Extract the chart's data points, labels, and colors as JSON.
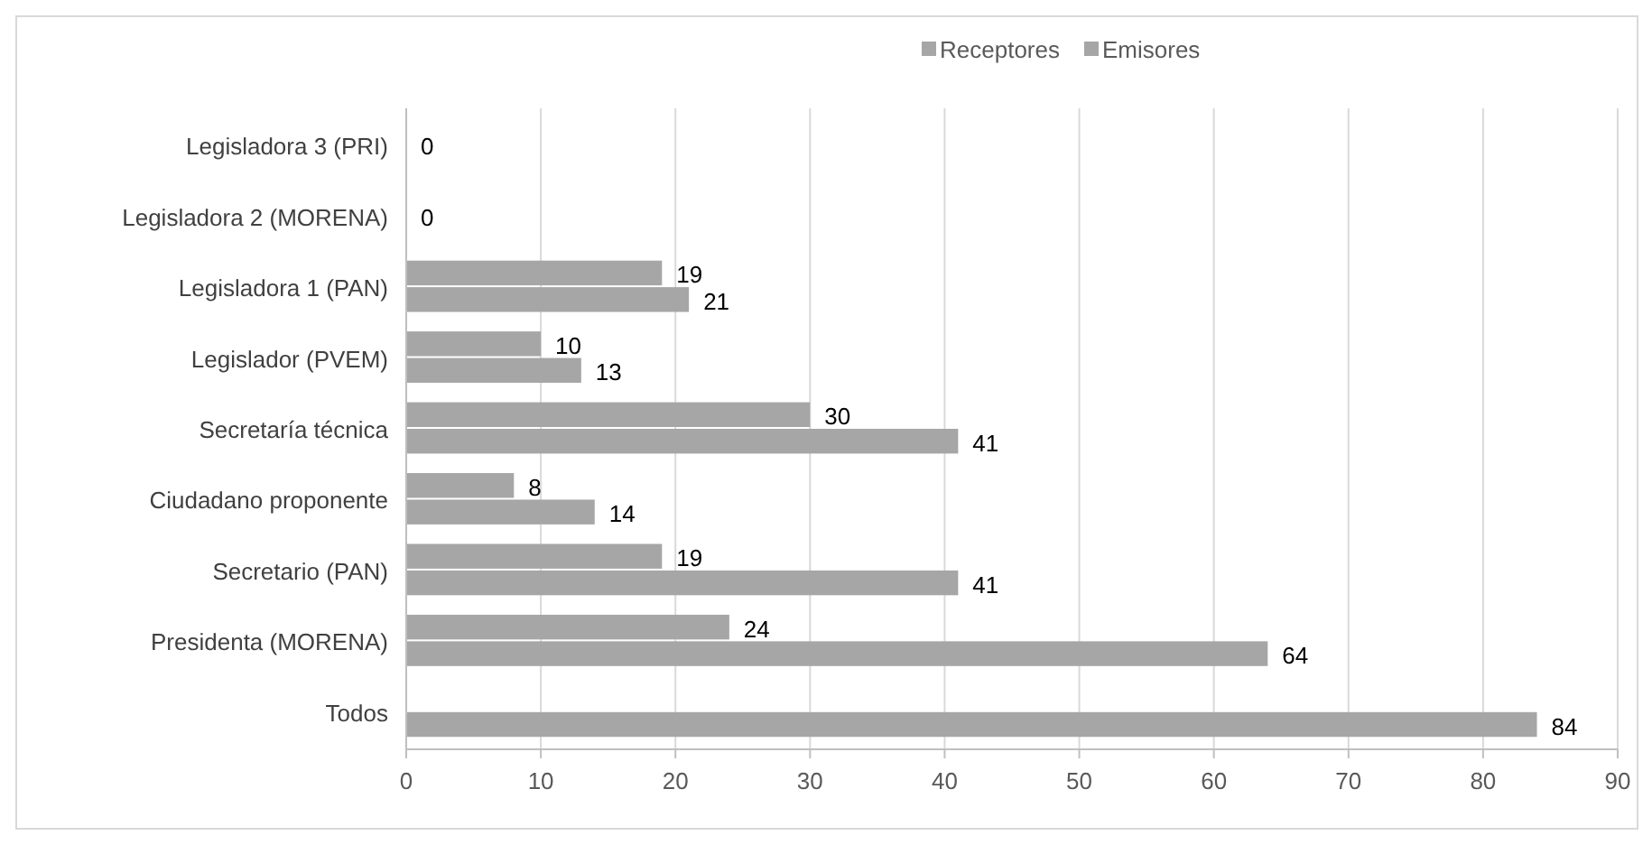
{
  "chart_data": {
    "type": "bar",
    "orientation": "horizontal",
    "categories": [
      "Legisladora 3 (PRI)",
      "Legisladora 2 (MORENA)",
      "Legisladora 1 (PAN)",
      "Legislador (PVEM)",
      "Secretaría técnica",
      "Ciudadano proponente",
      "Secretario (PAN)",
      "Presidenta (MORENA)",
      "Todos"
    ],
    "series": [
      {
        "name": "Receptores",
        "color": "#a6a6a6",
        "values": [
          0,
          0,
          19,
          10,
          30,
          8,
          19,
          24,
          null
        ],
        "value_labels": [
          "0",
          "0",
          "19",
          "10",
          "30",
          "8",
          "19",
          "24",
          null
        ]
      },
      {
        "name": "Emisores",
        "color": "#a6a6a6",
        "values": [
          0,
          0,
          21,
          13,
          41,
          14,
          41,
          64,
          84
        ],
        "value_labels": [
          null,
          null,
          "21",
          "13",
          "41",
          "14",
          "41",
          "64",
          "84"
        ]
      }
    ],
    "xlim": [
      0,
      90
    ],
    "xticks": [
      0,
      10,
      20,
      30,
      40,
      50,
      60,
      70,
      80,
      90
    ],
    "grid": "x",
    "legend": "top"
  }
}
